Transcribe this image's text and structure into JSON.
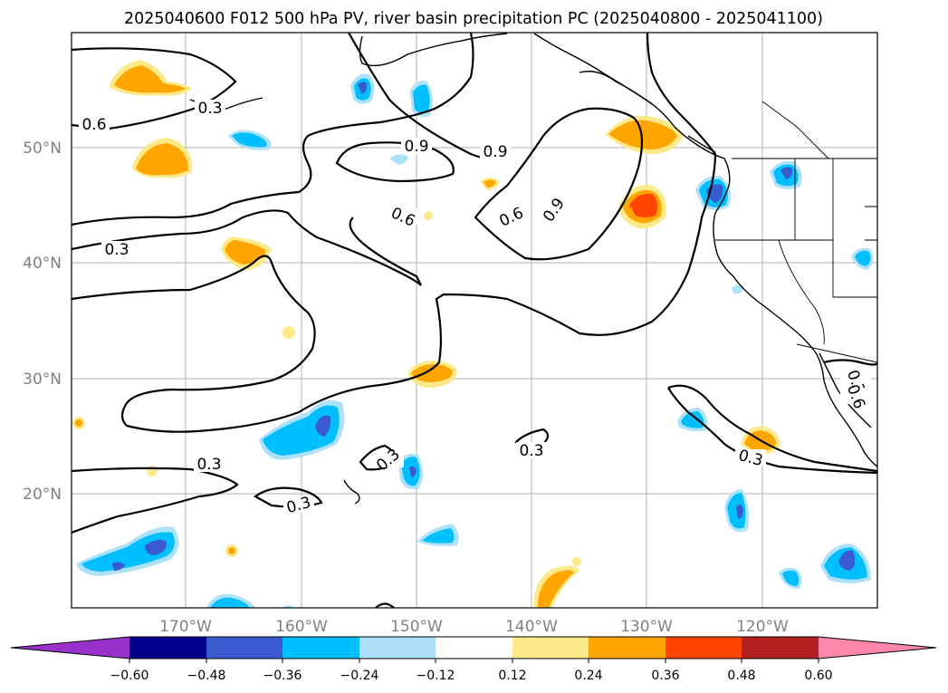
{
  "title": "2025040600 F012 500 hPa PV, river basin precipitation PC (2025040800 - 2025041100)",
  "x_ticks": [
    "170°W",
    "160°W",
    "150°W",
    "140°W",
    "130°W",
    "120°W"
  ],
  "y_ticks": [
    "50°N",
    "40°N",
    "30°N",
    "20°N"
  ],
  "colorbar": {
    "colors": [
      "#9932CC",
      "#00008B",
      "#3A5BD0",
      "#00BFFF",
      "#ADE1FA",
      "#FFFFFF",
      "#FCE98A",
      "#FFA500",
      "#FF4500",
      "#B22222",
      "#FF88AA"
    ],
    "labels": [
      "−0.60",
      "−0.48",
      "−0.36",
      "−0.24",
      "−0.12",
      "0.12",
      "0.24",
      "0.36",
      "0.48",
      "0.60"
    ]
  },
  "contour_labels": {
    "c1": "0.6",
    "c2": "0.3",
    "c3": "0.9",
    "c4": "0.9",
    "c5": "0.6",
    "c6": "0.6",
    "c7": "0.9",
    "c8": "0.3",
    "c9": "0.3",
    "c10": "0.3",
    "c11": "0.3",
    "c12": "0.3",
    "c13": "0.3",
    "c14": "0.3",
    "c15": "0.6"
  }
}
